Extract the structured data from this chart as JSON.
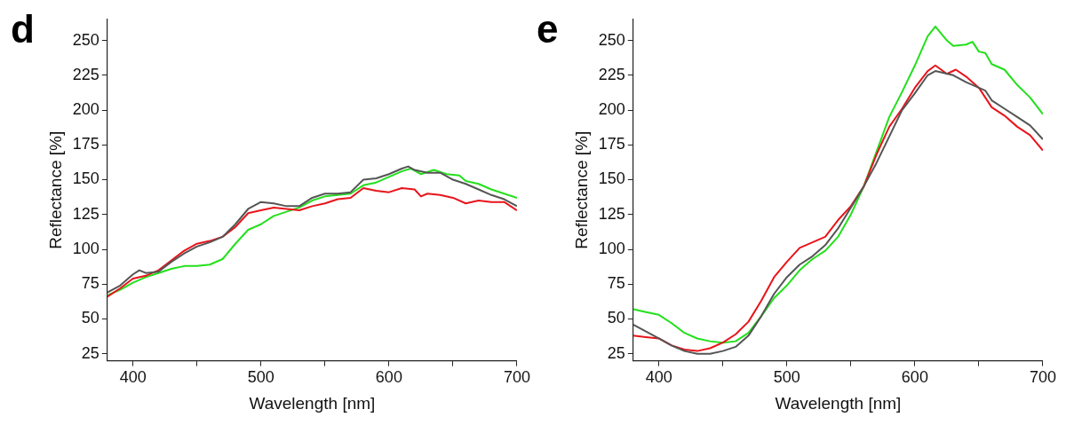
{
  "chart_data": [
    {
      "type": "line",
      "title": "d",
      "xlabel": "Wavelength [nm]",
      "ylabel": "Reflectance [%]",
      "xlim": [
        380,
        700
      ],
      "ylim": [
        20,
        265
      ],
      "xticks": [
        400,
        {
          "value": 450,
          "label": null
        },
        500,
        {
          "value": 550,
          "label": null
        },
        600,
        {
          "value": 650,
          "label": null
        },
        700
      ],
      "yticks": [
        25,
        50,
        75,
        100,
        125,
        150,
        175,
        200,
        225,
        250
      ],
      "grid": false,
      "legend": false,
      "marker": "none",
      "line_style": "solid",
      "series": [
        {
          "color": "#555555",
          "x": [
            380,
            390,
            400,
            405,
            410,
            420,
            430,
            440,
            450,
            460,
            470,
            480,
            490,
            500,
            510,
            520,
            530,
            540,
            550,
            560,
            570,
            580,
            590,
            600,
            610,
            615,
            620,
            630,
            640,
            650,
            660,
            670,
            680,
            690,
            700
          ],
          "values": [
            69,
            74,
            82,
            85,
            83,
            84,
            91,
            97,
            102,
            105,
            109,
            118,
            129,
            134,
            133,
            131,
            131,
            137,
            140,
            140,
            141,
            150,
            151,
            154,
            158,
            159.5,
            157,
            155,
            155,
            150,
            147,
            143,
            139,
            136,
            131
          ]
        },
        {
          "color": "#e8141b",
          "x": [
            380,
            390,
            400,
            410,
            420,
            430,
            440,
            450,
            460,
            470,
            480,
            490,
            500,
            510,
            520,
            530,
            540,
            550,
            560,
            570,
            580,
            590,
            600,
            610,
            620,
            625,
            630,
            640,
            650,
            660,
            670,
            680,
            690,
            700
          ],
          "values": [
            66,
            72,
            79,
            81,
            85,
            92,
            99,
            104,
            106,
            109,
            116,
            126,
            128,
            130,
            129,
            128,
            131,
            133,
            136,
            137,
            144,
            142,
            141,
            144,
            143,
            138,
            140,
            139,
            137,
            133,
            135,
            134,
            134,
            128
          ]
        },
        {
          "color": "#22e01a",
          "x": [
            380,
            390,
            400,
            410,
            420,
            430,
            440,
            450,
            460,
            470,
            480,
            490,
            500,
            510,
            520,
            530,
            540,
            550,
            560,
            570,
            580,
            590,
            600,
            610,
            617,
            625,
            635,
            645,
            655,
            660,
            670,
            680,
            690,
            700
          ],
          "values": [
            67,
            71,
            76,
            80,
            83,
            86,
            88,
            88,
            89,
            93,
            104,
            114,
            118,
            124,
            127,
            130,
            135,
            138,
            139,
            140,
            146,
            148,
            152,
            156,
            158,
            154,
            157,
            154,
            153,
            149,
            147,
            143,
            140,
            137
          ]
        }
      ]
    },
    {
      "type": "line",
      "title": "e",
      "xlabel": "Wavelength [nm]",
      "ylabel": "Reflectance [%]",
      "xlim": [
        380,
        700
      ],
      "ylim": [
        20,
        265
      ],
      "xticks": [
        400,
        {
          "value": 450,
          "label": null
        },
        500,
        {
          "value": 550,
          "label": null
        },
        600,
        {
          "value": 650,
          "label": null
        },
        700
      ],
      "yticks": [
        25,
        50,
        75,
        100,
        125,
        150,
        175,
        200,
        225,
        250
      ],
      "grid": false,
      "legend": false,
      "marker": "none",
      "line_style": "solid",
      "series": [
        {
          "color": "#555555",
          "x": [
            380,
            390,
            400,
            410,
            420,
            430,
            440,
            450,
            460,
            470,
            480,
            490,
            500,
            510,
            520,
            530,
            540,
            550,
            560,
            570,
            580,
            590,
            600,
            610,
            616,
            630,
            640,
            650,
            655,
            660,
            670,
            680,
            690,
            700
          ],
          "values": [
            46,
            41,
            36,
            31,
            27,
            25,
            25,
            27,
            30,
            38,
            52,
            68,
            80,
            89,
            95,
            103,
            115,
            130,
            145,
            162,
            181,
            200,
            212,
            225,
            228,
            225,
            220,
            216,
            214,
            207,
            201,
            195,
            189,
            179
          ]
        },
        {
          "color": "#e8141b",
          "x": [
            380,
            390,
            400,
            410,
            420,
            430,
            440,
            450,
            460,
            470,
            480,
            490,
            500,
            510,
            520,
            530,
            540,
            550,
            560,
            570,
            580,
            590,
            600,
            610,
            616,
            625,
            632,
            640,
            650,
            660,
            670,
            680,
            690,
            700
          ],
          "values": [
            38,
            37,
            36,
            31,
            28,
            27,
            29,
            33,
            39,
            48,
            63,
            80,
            91,
            101,
            105,
            109,
            121,
            131,
            145,
            168,
            188,
            201,
            216,
            228,
            232,
            226,
            229,
            224,
            216,
            202,
            196,
            188,
            182,
            171
          ]
        },
        {
          "color": "#22e01a",
          "x": [
            380,
            390,
            400,
            410,
            420,
            430,
            440,
            450,
            460,
            470,
            480,
            490,
            500,
            510,
            520,
            530,
            540,
            550,
            560,
            570,
            580,
            590,
            600,
            610,
            616,
            625,
            630,
            640,
            645,
            650,
            655,
            660,
            670,
            680,
            690,
            700
          ],
          "values": [
            57,
            55,
            53,
            47,
            40,
            36,
            34,
            33,
            34,
            40,
            52,
            65,
            74,
            85,
            93,
            99,
            109,
            125,
            145,
            170,
            195,
            213,
            232,
            253,
            260,
            250,
            246,
            247,
            249,
            242,
            241,
            233,
            229,
            218,
            209,
            197
          ]
        }
      ]
    }
  ]
}
